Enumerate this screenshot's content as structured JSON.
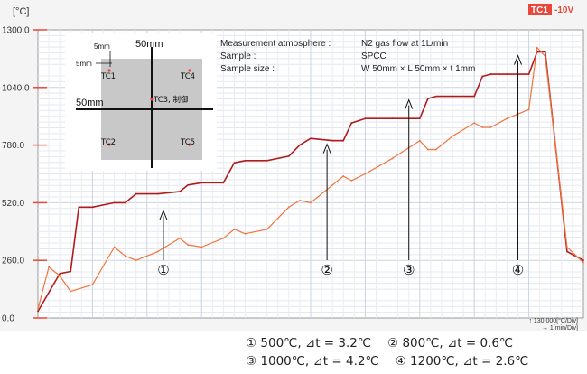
{
  "chart_data": {
    "type": "line",
    "ylabel": "[°C]",
    "yticks": [
      "0.0",
      "260.0",
      "520.0",
      "780.0",
      "1040.0",
      "1300.0"
    ],
    "ylim": [
      0,
      1300
    ],
    "xlim": [
      0,
      10
    ],
    "grid": true,
    "channel_badge": {
      "label": "TC1",
      "range": "-10V",
      "color": "#e8473a"
    },
    "scale_readout": [
      "↑ 130.000[°C/Div]",
      "→   1[min/Div]"
    ],
    "series": [
      {
        "color": "#b01c1c",
        "x": [
          0,
          0.4,
          0.6,
          0.75,
          1.0,
          1.4,
          1.6,
          1.8,
          2.2,
          2.6,
          2.75,
          3.0,
          3.4,
          3.6,
          3.8,
          4.2,
          4.6,
          4.8,
          5.0,
          5.4,
          5.6,
          5.75,
          6.0,
          6.5,
          7.0,
          7.15,
          7.3,
          7.6,
          8.0,
          8.15,
          8.3,
          8.6,
          9.0,
          9.15,
          9.3,
          9.7,
          10.0
        ],
        "y": [
          30,
          200,
          210,
          500,
          500,
          520,
          520,
          560,
          560,
          570,
          600,
          610,
          610,
          700,
          710,
          710,
          730,
          780,
          810,
          800,
          800,
          880,
          900,
          900,
          900,
          990,
          1000,
          1000,
          1000,
          1090,
          1100,
          1100,
          1100,
          1200,
          1200,
          300,
          260
        ]
      },
      {
        "color": "#f2743b",
        "x": [
          0,
          0.2,
          0.4,
          0.6,
          1.0,
          1.4,
          1.6,
          1.8,
          2.2,
          2.6,
          2.75,
          3.0,
          3.4,
          3.6,
          3.8,
          4.2,
          4.6,
          4.8,
          5.0,
          5.4,
          5.6,
          5.75,
          6.0,
          6.5,
          7.0,
          7.15,
          7.3,
          7.6,
          8.0,
          8.15,
          8.3,
          8.6,
          9.0,
          9.15,
          9.3,
          9.7,
          10.0
        ],
        "y": [
          40,
          230,
          190,
          120,
          150,
          320,
          280,
          260,
          300,
          360,
          330,
          320,
          360,
          400,
          380,
          400,
          500,
          530,
          520,
          600,
          640,
          620,
          650,
          720,
          800,
          760,
          760,
          820,
          880,
          860,
          860,
          900,
          940,
          1220,
          1180,
          320,
          250
        ]
      }
    ],
    "annotations": [
      {
        "label": "①",
        "x": 2.3,
        "y_target": 500
      },
      {
        "label": "②",
        "x": 5.3,
        "y_target": 800
      },
      {
        "label": "③",
        "x": 6.8,
        "y_target": 1000
      },
      {
        "label": "④",
        "x": 8.8,
        "y_target": 1200
      }
    ]
  },
  "info": {
    "rows": [
      {
        "label": "Measurement atmosphere :",
        "value": "N2 gas flow at 1L/min"
      },
      {
        "label": "Sample :",
        "value": "SPCC"
      },
      {
        "label": "Sample size :",
        "value": "W 50mm × L 50mm × t 1mm"
      }
    ]
  },
  "inset": {
    "dim_top": "50mm",
    "dim_left": "50mm",
    "dim_small_a": "5mm",
    "dim_small_b": "5mm",
    "points": [
      "TC1",
      "TC4",
      "TC3, 制御",
      "TC2",
      "TC5"
    ]
  },
  "captions": {
    "line1_a": "① 500℃, ⊿t = 3.2℃",
    "line1_b": "② 800℃, ⊿t = 0.6℃",
    "line2_a": "③ 1000℃, ⊿t = 4.2℃",
    "line2_b": "④ 1200℃, ⊿t = 2.6℃"
  }
}
